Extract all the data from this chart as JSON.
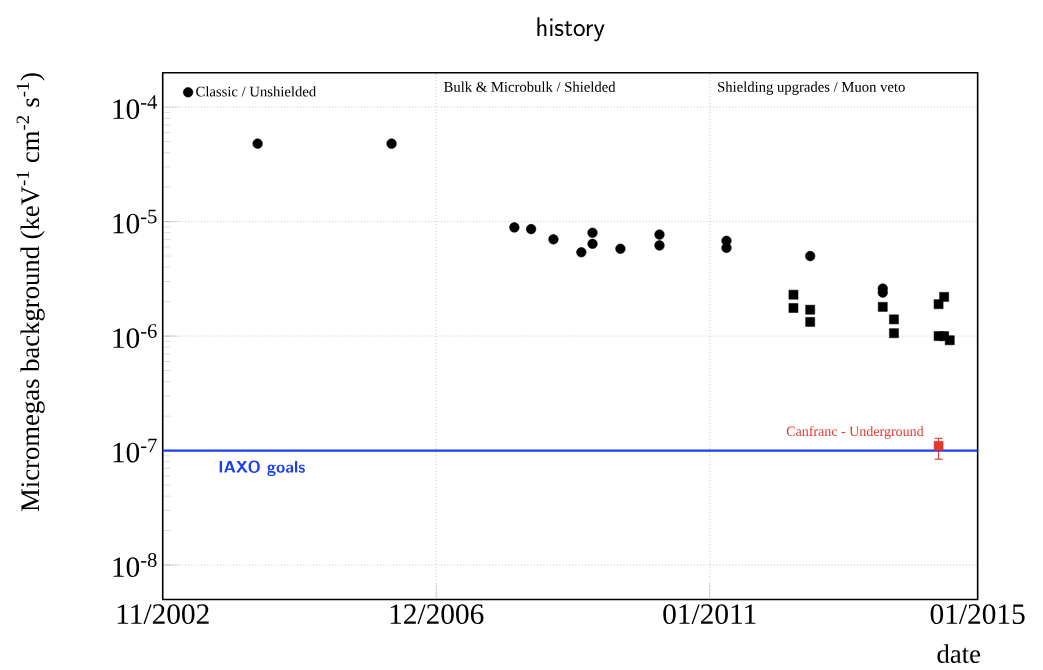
{
  "chart_data": {
    "type": "scatter",
    "title": "history",
    "xlabel": "date",
    "ylabel": "Micromegas background (keV$^{-1}$ cm$^{-2}$ s$^{-1}$)",
    "annotations": [
      "Bulk & Microbulk / Shielded",
      "Shielding upgrades / Muon veto",
      {
        "text": "Canfranc - Underground",
        "x": "2014-06",
        "y": 1.1e-07
      }
    ],
    "series": [
      {
        "name": "Classic / Unshielded",
        "color": "#000000",
        "marker": "circle",
        "x": [
          "2004-04",
          "2006-04",
          "2008-02",
          "2008-05",
          "2008-09",
          "2009-02",
          "2009-04",
          "2009-04",
          "2009-09",
          "2010-04",
          "2010-04",
          "2011-04",
          "2011-04",
          "2012-07",
          "2013-08",
          "2013-08"
        ],
        "values": [
          4.8e-05,
          4.8e-05,
          8.9e-06,
          8.6e-06,
          7e-06,
          5.4e-06,
          8e-06,
          6.4e-06,
          5.8e-06,
          7.7e-06,
          6.2e-06,
          6.8e-06,
          5.9e-06,
          5e-06,
          2.6e-06,
          2.4e-06
        ]
      },
      {
        "color": "#000000",
        "marker": "square",
        "x": [
          "2012-04",
          "2012-04",
          "2012-07",
          "2012-07",
          "2013-08",
          "2013-10",
          "2013-10",
          "2014-07",
          "2014-06",
          "2014-06",
          "2014-07",
          "2014-08"
        ],
        "values": [
          2.3e-06,
          1.76e-06,
          1.7e-06,
          1.33e-06,
          1.8e-06,
          1.4e-06,
          1.06e-06,
          2.2e-06,
          1.9e-06,
          1e-06,
          1e-06,
          9.2e-07
        ]
      },
      {
        "color": "#e03a2e",
        "marker": "square",
        "x": [
          "2014-06"
        ],
        "values": [
          1.1e-07
        ],
        "errors": [
          [
            8.4e-08,
            1.28e-07
          ]
        ]
      }
    ],
    "ref_lines": [
      {
        "axis": "y",
        "value": 1e-07,
        "label": "IAXO goals",
        "color": "#1a3ef0"
      }
    ],
    "log": "y",
    "grid": true,
    "legend": "top left",
    "xlim": [
      "2002-11",
      "2015-01"
    ],
    "ylim": [
      5e-09,
      0.0002
    ],
    "xticks": [
      {
        "value": "2002-11",
        "label": "11/2002"
      },
      {
        "value": "2006-12",
        "label": "12/2006"
      },
      {
        "value": "2011-01",
        "label": "01/2011"
      },
      {
        "value": "2015-01",
        "label": "01/2015"
      }
    ],
    "yticks": [
      {
        "value": 1e-08,
        "label": "10$^{-8}$"
      },
      {
        "value": 1e-07,
        "label": "10$^{-7}$"
      },
      {
        "value": 1e-06,
        "label": "10$^{-6}$"
      },
      {
        "value": 1e-05,
        "label": "10$^{-5}$"
      },
      {
        "value": 0.0001,
        "label": "10$^{-4}$"
      }
    ]
  }
}
